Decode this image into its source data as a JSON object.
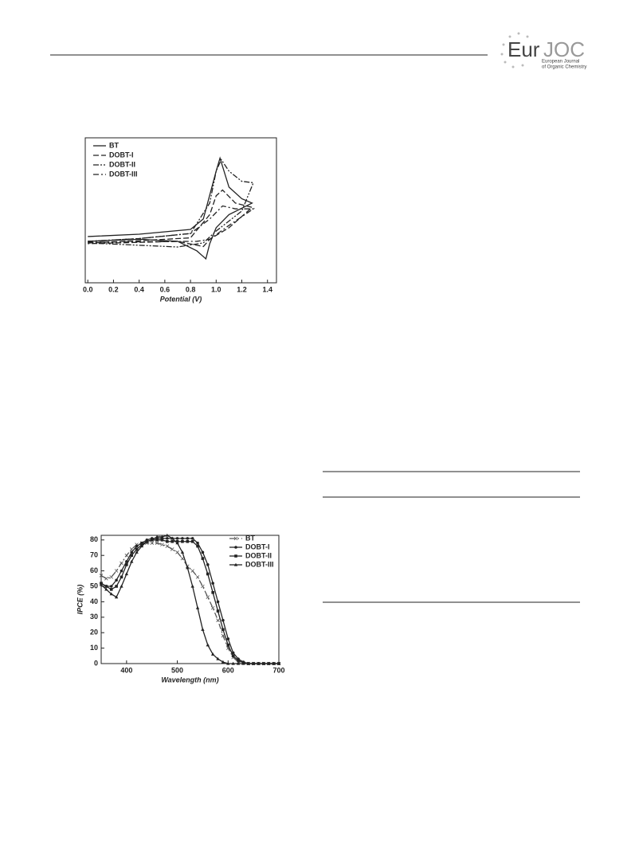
{
  "header": {
    "logo_main": "Eur",
    "logo_accent": "JOC",
    "logo_sub1": "European Journal",
    "logo_sub2": "of Organic Chemistry"
  },
  "chart_data": [
    {
      "type": "line",
      "xlabel": "Potential (V)",
      "xlim": [
        -0.02,
        1.47
      ],
      "ylim": [
        0,
        100
      ],
      "xticks": [
        {
          "value": 0,
          "label": "0.0"
        },
        0.2,
        0.4,
        0.6,
        0.8,
        {
          "value": 1,
          "label": "1.0"
        },
        1.2,
        1.4
      ],
      "legend": "top-left",
      "series": [
        {
          "name": "BT",
          "color": "#222",
          "dash": "solid",
          "x": [
            0,
            0.4,
            0.8,
            0.9,
            1.0,
            1.03,
            1.1,
            1.2,
            1.28,
            1.1,
            1.0,
            0.95,
            0.92,
            0.85,
            0.7,
            0.4,
            0
          ],
          "values": [
            31.9,
            33.5,
            36.8,
            44,
            77,
            86,
            66,
            58,
            55,
            47,
            38,
            27,
            16.5,
            22,
            28.6,
            30,
            28.6
          ]
        },
        {
          "name": "DOBT-I",
          "color": "#222",
          "dash": "dashed",
          "x": [
            0,
            0.4,
            0.8,
            0.95,
            1.0,
            1.05,
            1.15,
            1.28,
            1.1,
            0.95,
            0.9,
            0.7,
            0
          ],
          "values": [
            27.5,
            29,
            31,
            47,
            60,
            64,
            55,
            52,
            38,
            30,
            25,
            28.6,
            27
          ]
        },
        {
          "name": "DOBT-II",
          "color": "#222",
          "dash": "dash-dot-dot",
          "x": [
            0,
            0.4,
            0.8,
            0.95,
            1.0,
            1.04,
            1.1,
            1.2,
            1.29,
            1.2,
            1.0,
            0.9,
            0.7,
            0
          ],
          "values": [
            28.6,
            30.5,
            34,
            55,
            77,
            85,
            77,
            70,
            69,
            49.5,
            35.7,
            27.5,
            24.7,
            27.5
          ]
        },
        {
          "name": "DOBT-III",
          "color": "#222",
          "dash": "dash-dot",
          "x": [
            0,
            0.4,
            0.8,
            0.95,
            1.05,
            1.15,
            1.29,
            1.1,
            0.95,
            0.85,
            0
          ],
          "values": [
            28.6,
            30.5,
            34,
            44,
            53,
            51,
            51,
            39.6,
            30,
            28.6,
            28
          ]
        }
      ]
    },
    {
      "type": "line",
      "xlabel": "Wavelength (nm)",
      "ylabel": "IPCE (%)",
      "xlim": [
        350,
        700
      ],
      "ylim": [
        0,
        83
      ],
      "xticks": [
        400,
        500,
        600,
        700
      ],
      "yticks": [
        0,
        10,
        20,
        30,
        40,
        50,
        60,
        70,
        80
      ],
      "legend": "top-right",
      "x": [
        350,
        360,
        370,
        380,
        390,
        400,
        410,
        420,
        430,
        440,
        450,
        460,
        470,
        480,
        490,
        500,
        510,
        520,
        530,
        540,
        550,
        560,
        570,
        580,
        590,
        600,
        610,
        620,
        630,
        640,
        650,
        660,
        670,
        680,
        690,
        700
      ],
      "series": [
        {
          "name": "BT",
          "color": "#555",
          "dash": "dash-dot",
          "marker": "cross",
          "values": [
            57,
            55,
            56,
            60,
            65,
            70,
            74,
            77,
            78,
            78,
            78,
            78,
            77,
            76,
            74,
            72,
            68,
            63,
            60,
            56,
            50,
            43,
            36,
            28,
            18,
            10,
            4,
            1,
            0.5,
            0,
            0,
            0,
            0,
            0,
            0,
            0
          ]
        },
        {
          "name": "DOBT-I",
          "color": "#222",
          "dash": "solid",
          "marker": "circle",
          "values": [
            52,
            50,
            50,
            54,
            60,
            66,
            72,
            76,
            78,
            80,
            81,
            81,
            81,
            81,
            81,
            81,
            81,
            81,
            81,
            78,
            72,
            64,
            52,
            40,
            28,
            16,
            7,
            3,
            1,
            0,
            0,
            0,
            0,
            0,
            0,
            0
          ]
        },
        {
          "name": "DOBT-II",
          "color": "#222",
          "dash": "solid",
          "marker": "square",
          "values": [
            52,
            50,
            48,
            50,
            56,
            64,
            70,
            74,
            77,
            79,
            80,
            80,
            80,
            79,
            79,
            79,
            79,
            79,
            79,
            76,
            68,
            58,
            46,
            34,
            22,
            12,
            5,
            2,
            0.5,
            0,
            0,
            0,
            0,
            0,
            0,
            0
          ]
        },
        {
          "name": "DOBT-III",
          "color": "#222",
          "dash": "solid",
          "marker": "triangle",
          "values": [
            51,
            48,
            45,
            43,
            50,
            58,
            66,
            72,
            76,
            79,
            80,
            82,
            82,
            83,
            81,
            78,
            72,
            62,
            50,
            36,
            22,
            12,
            6,
            3,
            1,
            0,
            0,
            0,
            0,
            0,
            0,
            0,
            0,
            0,
            0,
            0
          ]
        }
      ]
    }
  ]
}
